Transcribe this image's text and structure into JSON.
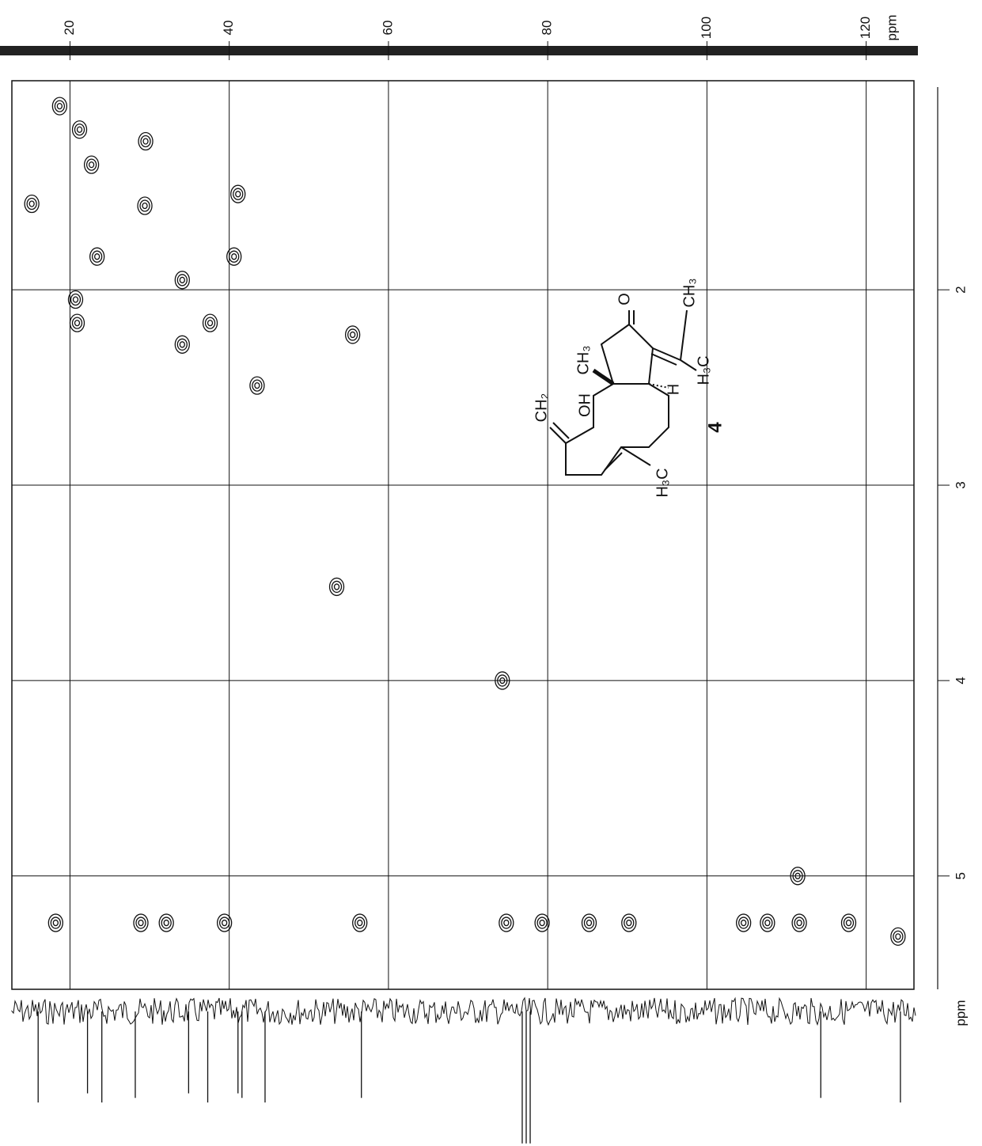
{
  "chart_data": {
    "type": "contour",
    "xlim": [
      12.7,
      126
    ],
    "xticks": [
      20,
      40,
      60,
      80,
      100,
      120
    ],
    "xlabel": "ppm",
    "ylim": [
      0.93,
      5.58
    ],
    "yticks": [
      2,
      3,
      4,
      5
    ],
    "ylabel": "ppm",
    "grid": true,
    "color": "#111111",
    "x": [
      18.7,
      21.2,
      22.7,
      15.2,
      23.4,
      20.7,
      20.9,
      34.1,
      37.6,
      34.1,
      40.6,
      29.4,
      41.1,
      29.5,
      55.5,
      43.5,
      53.5,
      74.3,
      111.4,
      18.2,
      28.9,
      32.1,
      39.4,
      56.4,
      74.8,
      79.3,
      85.2,
      90.2,
      104.6,
      107.6,
      111.6,
      117.8,
      124.0
    ],
    "values": [
      1.06,
      1.18,
      1.36,
      1.56,
      1.83,
      2.05,
      2.17,
      2.28,
      2.17,
      1.95,
      1.83,
      1.57,
      1.51,
      1.24,
      2.23,
      2.49,
      3.52,
      4.0,
      5.0,
      5.24,
      5.24,
      5.24,
      5.24,
      5.24,
      5.24,
      5.24,
      5.24,
      5.24,
      5.24,
      5.24,
      5.24,
      5.24,
      5.31
    ],
    "projection_peaks": [
      16.0,
      22.2,
      24.0,
      28.2,
      34.9,
      37.3,
      41.1,
      41.6,
      44.5,
      56.6,
      76.8,
      77.3,
      77.8,
      114.3,
      124.3
    ],
    "projection_intensities": [
      1.0,
      0.9,
      1.0,
      0.95,
      0.9,
      1.0,
      0.9,
      0.95,
      1.0,
      0.95,
      1.45,
      1.45,
      1.45,
      0.95,
      1.0
    ]
  },
  "structure": {
    "carbonyl_o": "O",
    "methyl_top": "CH₃",
    "methyl_ring": "CH₃",
    "hydrogen": "H",
    "methyl_exo": "H₃C",
    "methylene": "CH₂",
    "hydroxyl": "OH",
    "compound_number": "4",
    "methyl_lower": "H₃C"
  }
}
